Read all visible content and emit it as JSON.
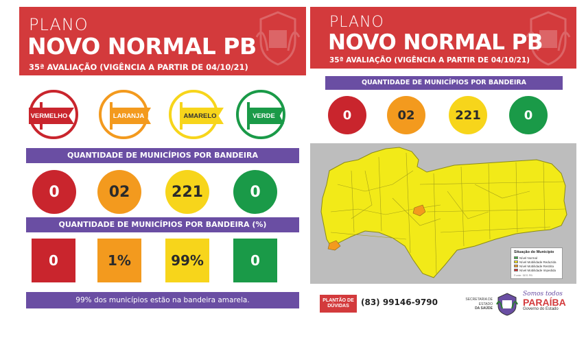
{
  "left": {
    "header": {
      "plano": "PLANO",
      "title": "NOVO NORMAL PB",
      "subtitle": "35ª AVALIAÇÃO (VIGÊNCIA A PARTIR DE 04/10/21)"
    },
    "flags": [
      {
        "label": "VERMELHO",
        "color": "#c9252d"
      },
      {
        "label": "LARANJA",
        "color": "#f39a1e"
      },
      {
        "label": "AMARELO",
        "color": "#f7d51b"
      },
      {
        "label": "VERDE",
        "color": "#1a9a48"
      }
    ],
    "count_title": "QUANTIDADE DE MUNICÍPIOS POR BANDEIRA",
    "counts": [
      "0",
      "02",
      "221",
      "0"
    ],
    "percent_title": "QUANTIDADE DE MUNICÍPIOS POR BANDEIRA (%)",
    "percents": [
      "0",
      "1%",
      "99%",
      "0"
    ],
    "summary": "99% dos municípios estão na bandeira amarela."
  },
  "right": {
    "header": {
      "plano": "PLANO",
      "title": "NOVO NORMAL PB",
      "subtitle": "35ª AVALIAÇÃO (VIGÊNCIA A PARTIR DE 04/10/21)"
    },
    "count_title": "QUANTIDADE DE MUNICÍPIOS POR BANDEIRA",
    "counts": [
      "0",
      "02",
      "221",
      "0"
    ],
    "legend": {
      "title": "Situação do Município",
      "items": [
        {
          "label": "Nível Normal",
          "color": "#3fae4a"
        },
        {
          "label": "Nível Mobilidade Reduzida",
          "color": "#f7e81b"
        },
        {
          "label": "Nível Mobilidade Restrita",
          "color": "#f39a1e"
        },
        {
          "label": "Nível Mobilidade Impedida",
          "color": "#d62a2a"
        }
      ],
      "source": "Fonte: SES PB"
    },
    "footer": {
      "plantao_line1": "PLANTÃO DE",
      "plantao_line2": "DÚVIDAS",
      "phone": "(83) 99146-9790",
      "secretaria_line1": "SECRETARIA DE ESTADO",
      "secretaria_line2": "DA SAÚDE",
      "slogan": "Somos todos",
      "brand": "PARAÍBA",
      "gov": "Governo do Estado"
    }
  },
  "colors": {
    "red": "#c9252d",
    "orange": "#f39a1e",
    "yellow": "#f7d51b",
    "green": "#1a9a48",
    "header_red": "#d33a3c",
    "purple": "#6a4ea3"
  }
}
